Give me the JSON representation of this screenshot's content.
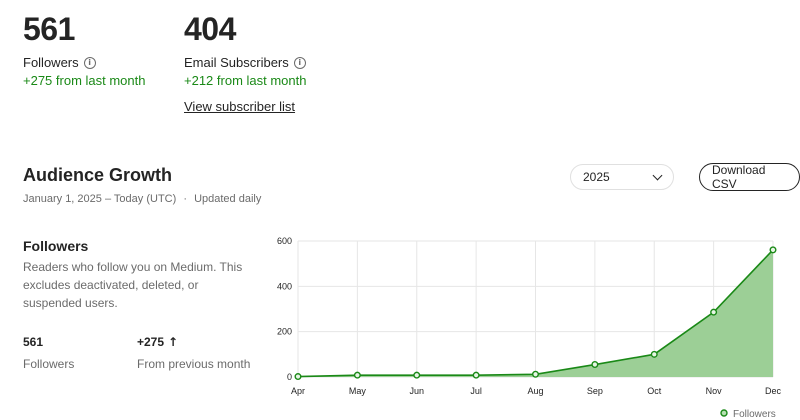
{
  "stats": {
    "followers": {
      "value": "561",
      "label": "Followers",
      "delta": "+275 from last month"
    },
    "email": {
      "value": "404",
      "label": "Email Subscribers",
      "delta": "+212 from last month",
      "link": "View subscriber list"
    }
  },
  "growth": {
    "title": "Audience Growth",
    "date_range": "January 1, 2025 – Today (UTC)",
    "updated": "Updated daily",
    "year_select": "2025",
    "download_label": "Download CSV"
  },
  "panel": {
    "title": "Followers",
    "description": "Readers who follow you on Medium. This excludes deactivated, deleted, or suspended users.",
    "total_value": "561",
    "total_label": "Followers",
    "delta_value": "+275",
    "delta_label": "From previous month"
  },
  "colors": {
    "accent": "#1a8917",
    "fill": "#9ccf96"
  },
  "chart_data": {
    "type": "area",
    "x": [
      "Apr",
      "May",
      "Jun",
      "Jul",
      "Aug",
      "Sep",
      "Oct",
      "Nov",
      "Dec"
    ],
    "series": [
      {
        "name": "Followers",
        "values": [
          2,
          8,
          8,
          8,
          12,
          55,
          100,
          286,
          561
        ]
      }
    ],
    "yticks": [
      0,
      200,
      400,
      600
    ],
    "ylim": [
      0,
      600
    ],
    "grid": true,
    "legend": "bottom-right"
  }
}
